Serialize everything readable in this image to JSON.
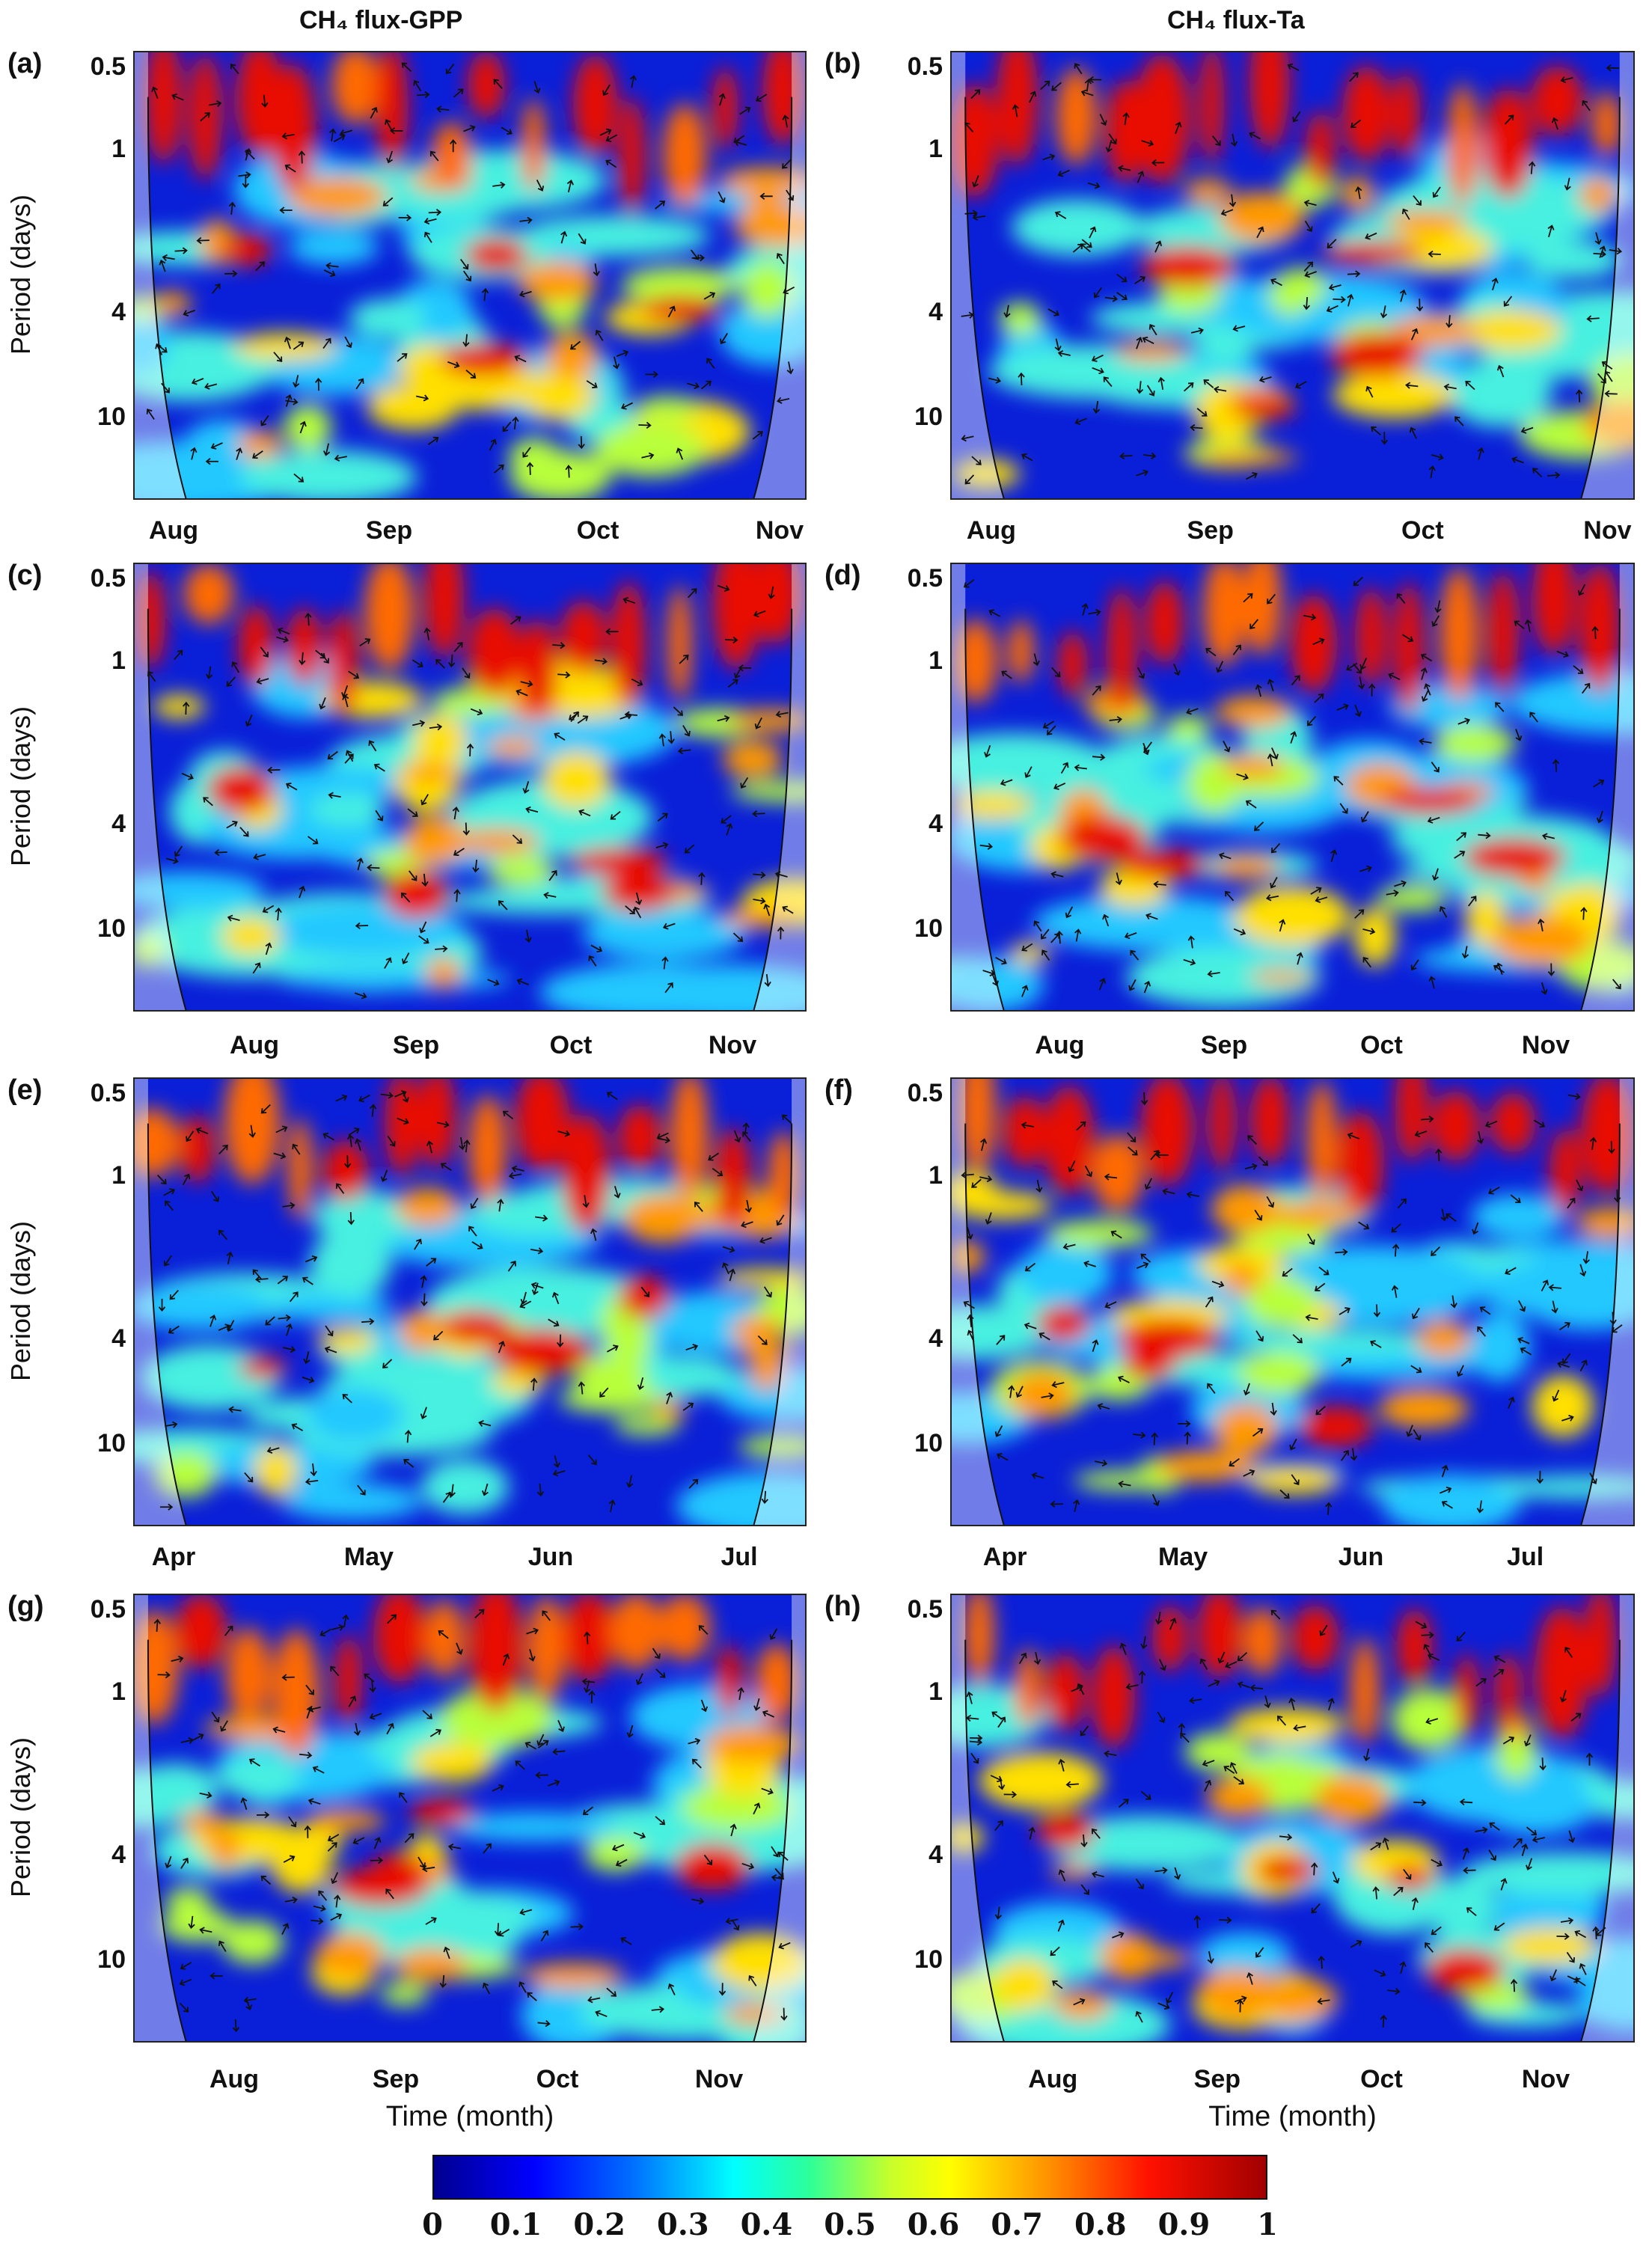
{
  "column_titles": [
    "CH₄  flux-GPP",
    "CH₄  flux-Ta"
  ],
  "y_axis_label": "Period (days)",
  "x_axis_label": "Time (month)",
  "colorbar": {
    "ticks": [
      "0",
      "0.1",
      "0.2",
      "0.3",
      "0.4",
      "0.5",
      "0.6",
      "0.7",
      "0.8",
      "0.9",
      "1"
    ]
  },
  "chart_data": [
    {
      "type": "heatmap",
      "panel": "(a)",
      "title": "CH₄  flux-GPP",
      "ylabel": "Period (days)",
      "xlabel": "",
      "x_ticks": [
        "Aug",
        "Sep",
        "Oct",
        "Nov"
      ],
      "y_ticks": [
        "0.5",
        "1",
        "4",
        "10"
      ],
      "y_scale": "log",
      "clim": [
        0,
        1
      ]
    },
    {
      "type": "heatmap",
      "panel": "(b)",
      "title": "CH₄  flux-Ta",
      "ylabel": "",
      "xlabel": "",
      "x_ticks": [
        "Aug",
        "Sep",
        "Oct",
        "Nov"
      ],
      "y_ticks": [
        "0.5",
        "1",
        "4",
        "10"
      ],
      "y_scale": "log",
      "clim": [
        0,
        1
      ]
    },
    {
      "type": "heatmap",
      "panel": "(c)",
      "title": "",
      "ylabel": "Period (days)",
      "xlabel": "",
      "x_ticks": [
        "Aug",
        "Sep",
        "Oct",
        "Nov"
      ],
      "y_ticks": [
        "0.5",
        "1",
        "4",
        "10"
      ],
      "y_scale": "log",
      "clim": [
        0,
        1
      ]
    },
    {
      "type": "heatmap",
      "panel": "(d)",
      "title": "",
      "ylabel": "",
      "xlabel": "",
      "x_ticks": [
        "Aug",
        "Sep",
        "Oct",
        "Nov"
      ],
      "y_ticks": [
        "0.5",
        "1",
        "4",
        "10"
      ],
      "y_scale": "log",
      "clim": [
        0,
        1
      ]
    },
    {
      "type": "heatmap",
      "panel": "(e)",
      "title": "",
      "ylabel": "Period (days)",
      "xlabel": "",
      "x_ticks": [
        "Apr",
        "May",
        "Jun",
        "Jul"
      ],
      "y_ticks": [
        "0.5",
        "1",
        "4",
        "10"
      ],
      "y_scale": "log",
      "clim": [
        0,
        1
      ]
    },
    {
      "type": "heatmap",
      "panel": "(f)",
      "title": "",
      "ylabel": "",
      "xlabel": "",
      "x_ticks": [
        "Apr",
        "May",
        "Jun",
        "Jul"
      ],
      "y_ticks": [
        "0.5",
        "1",
        "4",
        "10"
      ],
      "y_scale": "log",
      "clim": [
        0,
        1
      ]
    },
    {
      "type": "heatmap",
      "panel": "(g)",
      "title": "",
      "ylabel": "Period (days)",
      "xlabel": "Time (month)",
      "x_ticks": [
        "Aug",
        "Sep",
        "Oct",
        "Nov"
      ],
      "y_ticks": [
        "0.5",
        "1",
        "4",
        "10"
      ],
      "y_scale": "log",
      "clim": [
        0,
        1
      ]
    },
    {
      "type": "heatmap",
      "panel": "(h)",
      "title": "",
      "ylabel": "",
      "xlabel": "Time (month)",
      "x_ticks": [
        "Aug",
        "Sep",
        "Oct",
        "Nov"
      ],
      "y_ticks": [
        "0.5",
        "1",
        "4",
        "10"
      ],
      "y_scale": "log",
      "clim": [
        0,
        1
      ]
    }
  ]
}
